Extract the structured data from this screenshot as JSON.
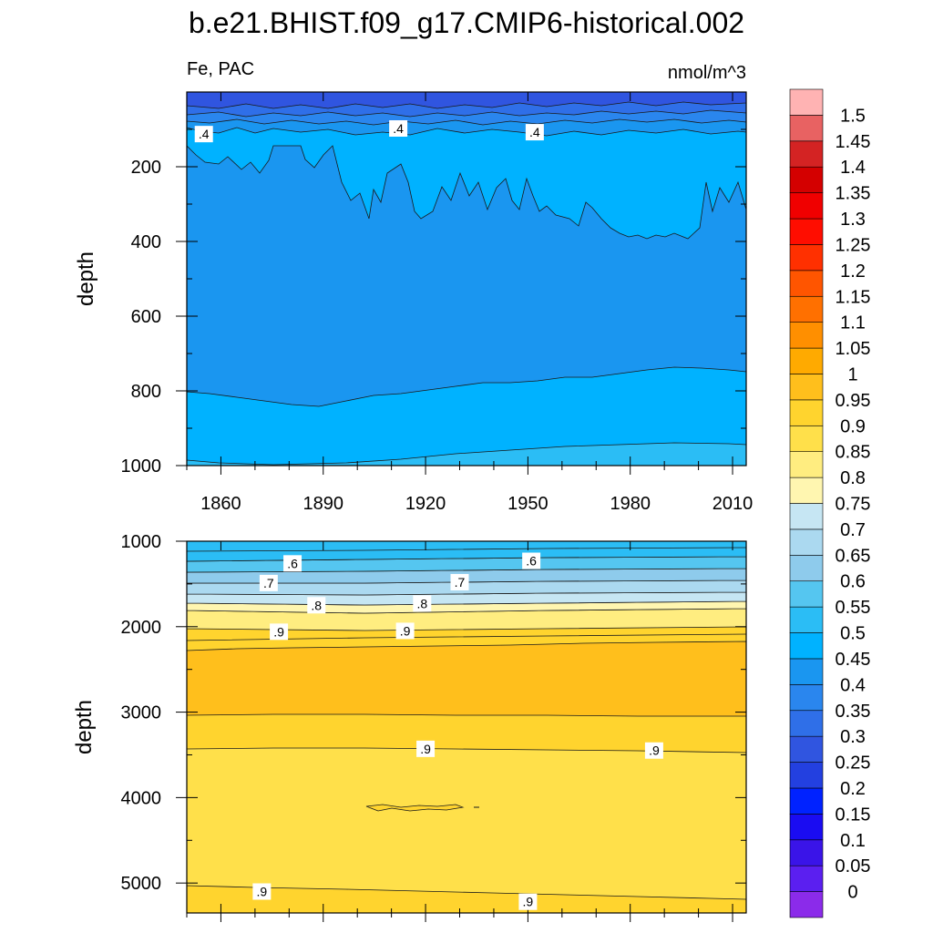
{
  "chart_data": {
    "title": "b.e21.BHIST.f09_g17.CMIP6-historical.002",
    "variable_label": "Fe, PAC",
    "units_label": "nmol/m^3",
    "type": "heatmap",
    "x_range": [
      1850,
      2014
    ],
    "x_tick_labels": [
      "1860",
      "1890",
      "1920",
      "1950",
      "1980",
      "2010"
    ],
    "x_tick_values": [
      1860,
      1890,
      1920,
      1950,
      1980,
      2010
    ],
    "panels": [
      {
        "name": "upper",
        "ylabel": "depth",
        "ylim": [
          0,
          1000
        ],
        "y_tick_labels": [
          "200",
          "400",
          "600",
          "800",
          "1000"
        ],
        "y_tick_values": [
          200,
          400,
          600,
          800,
          1000
        ],
        "contour_labels": [
          {
            "text": ".4",
            "x": 1855,
            "y": 115
          },
          {
            "text": ".4",
            "x": 1912,
            "y": 100
          },
          {
            "text": ".4",
            "x": 1952,
            "y": 110
          }
        ]
      },
      {
        "name": "lower",
        "ylabel": "depth",
        "ylim": [
          1000,
          5350
        ],
        "y_tick_labels": [
          "1000",
          "2000",
          "3000",
          "4000",
          "5000"
        ],
        "y_tick_values": [
          1000,
          2000,
          3000,
          4000,
          5000
        ],
        "contour_labels": [
          {
            "text": ".6",
            "x": 1881,
            "y": 1270
          },
          {
            "text": ".6",
            "x": 1951,
            "y": 1240
          },
          {
            "text": ".7",
            "x": 1874,
            "y": 1500
          },
          {
            "text": ".7",
            "x": 1930,
            "y": 1490
          },
          {
            "text": ".8",
            "x": 1888,
            "y": 1760
          },
          {
            "text": ".8",
            "x": 1919,
            "y": 1740
          },
          {
            "text": ".9",
            "x": 1877,
            "y": 2070
          },
          {
            "text": ".9",
            "x": 1914,
            "y": 2060
          },
          {
            "text": ".9",
            "x": 1920,
            "y": 3440
          },
          {
            "text": ".9",
            "x": 1987,
            "y": 3460
          },
          {
            "text": ".9",
            "x": 1872,
            "y": 5110
          },
          {
            "text": ".9",
            "x": 1950,
            "y": 5230
          }
        ]
      }
    ],
    "colorbar": {
      "levels": [
        "0",
        "0.05",
        "0.1",
        "0.15",
        "0.2",
        "0.25",
        "0.3",
        "0.35",
        "0.4",
        "0.45",
        "0.5",
        "0.55",
        "0.6",
        "0.65",
        "0.7",
        "0.75",
        "0.8",
        "0.85",
        "0.9",
        "0.95",
        "1",
        "1.05",
        "1.1",
        "1.15",
        "1.2",
        "1.25",
        "1.3",
        "1.35",
        "1.4",
        "1.45",
        "1.5"
      ],
      "colors": [
        "#8b2bea",
        "#5b1ff0",
        "#3a14e8",
        "#1a0cf2",
        "#0022ff",
        "#2340e0",
        "#3055e0",
        "#2f6fe8",
        "#2a86ee",
        "#1a96f0",
        "#00b2ff",
        "#2bbdf5",
        "#55c6f0",
        "#8ecbec",
        "#abd9f0",
        "#c6e6f3",
        "#fff6b0",
        "#ffed80",
        "#ffe04a",
        "#ffd42e",
        "#ffbf1c",
        "#ffaa00",
        "#ff8f00",
        "#ff7000",
        "#ff5500",
        "#ff3000",
        "#ff0d00",
        "#f00000",
        "#d40000",
        "#d42323",
        "#e86262",
        "#ffb3b3"
      ]
    }
  }
}
